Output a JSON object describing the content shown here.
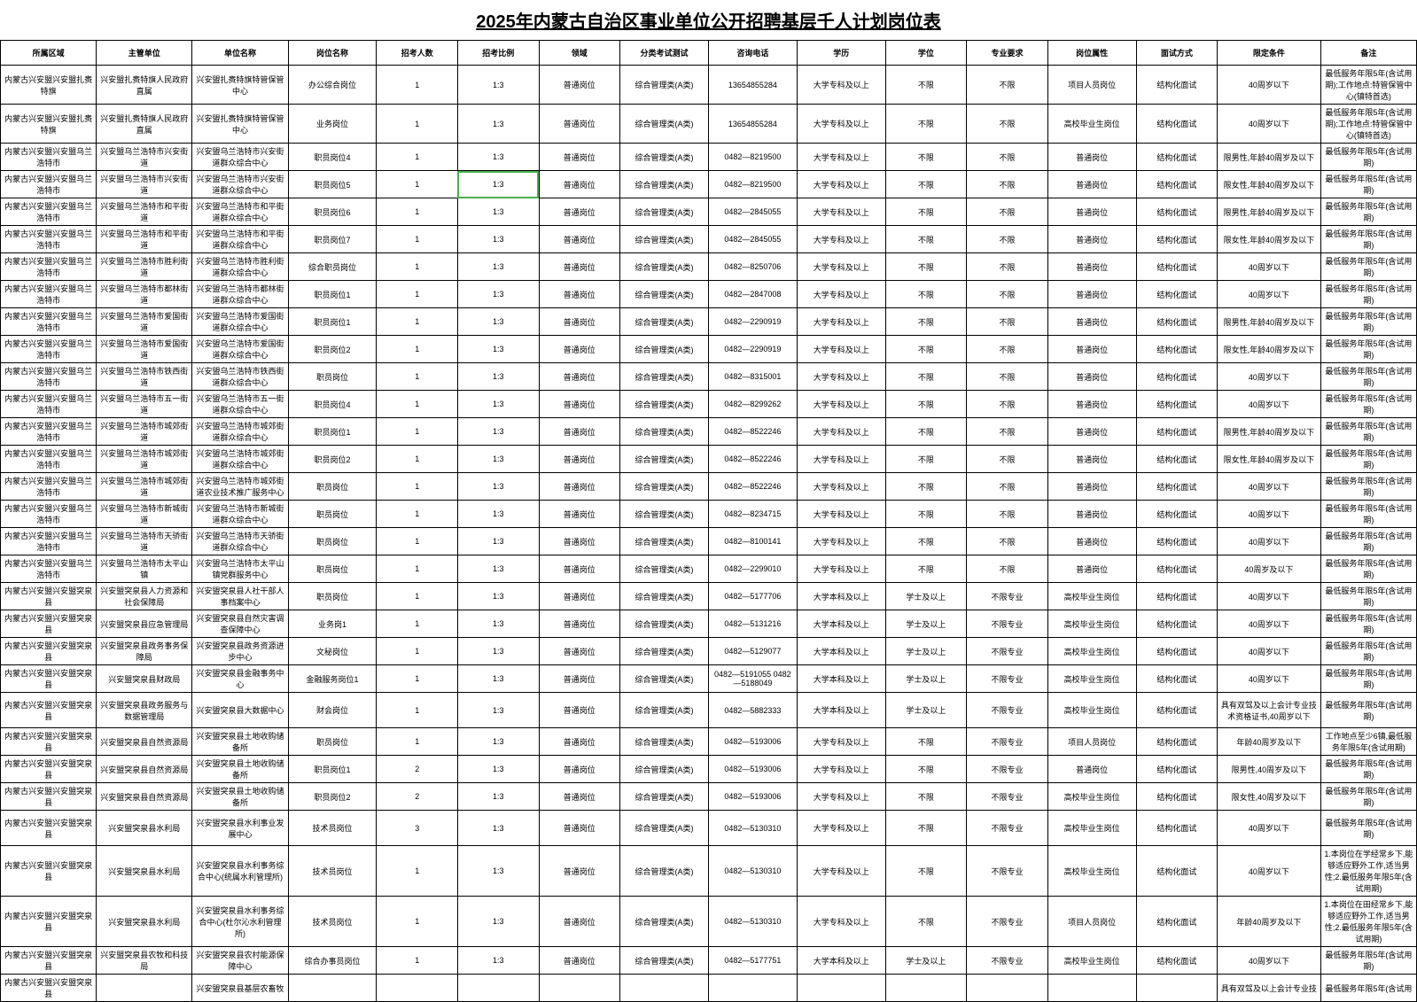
{
  "title": "2025年内蒙古自治区事业单位公开招聘基层千人计划岗位表",
  "headers": [
    "所属区域",
    "主管单位",
    "单位名称",
    "岗位名称",
    "招考人数",
    "招考比例",
    "领域",
    "分类考试测试",
    "咨询电话",
    "学历",
    "学位",
    "专业要求",
    "岗位属性",
    "面试方式",
    "限定条件",
    "备注"
  ],
  "rows": [
    {
      "cells": [
        "内蒙古兴安盟兴安盟扎赉特旗",
        "兴安盟扎赉特旗人民政府直属",
        "兴安盟扎赉特旗特管保管中心",
        "办公综合岗位",
        "1",
        "1:3",
        "普通岗位",
        "综合管理类(A类)",
        "13654855284",
        "大学专科及以上",
        "不限",
        "不限",
        "项目人员岗位",
        "结构化面试",
        "40周岁以下",
        "最低服务年限5年(含试用期);工作地点:特管保管中心(镇特首选)"
      ],
      "tall": true
    },
    {
      "cells": [
        "内蒙古兴安盟兴安盟扎赉特旗",
        "兴安盟扎赉特旗人民政府直属",
        "兴安盟扎赉特旗特管保管中心",
        "业务岗位",
        "1",
        "1:3",
        "普通岗位",
        "综合管理类(A类)",
        "13654855284",
        "大学专科及以上",
        "不限",
        "不限",
        "高校毕业生岗位",
        "结构化面试",
        "40周岁以下",
        "最低服务年限5年(含试用期);工作地点:特管保管中心(镇特首选)"
      ],
      "tall": true
    },
    {
      "cells": [
        "内蒙古兴安盟兴安盟乌兰浩特市",
        "兴安盟乌兰浩特市兴安街道",
        "兴安盟乌兰浩特市兴安街道群众综合中心",
        "职员岗位4",
        "1",
        "1:3",
        "普通岗位",
        "综合管理类(A类)",
        "0482—8219500",
        "大学专科及以上",
        "不限",
        "不限",
        "普通岗位",
        "结构化面试",
        "限男性,年龄40周岁及以下",
        "最低服务年限5年(含试用期)"
      ]
    },
    {
      "cells": [
        "内蒙古兴安盟兴安盟乌兰浩特市",
        "兴安盟乌兰浩特市兴安街道",
        "兴安盟乌兰浩特市兴安街道群众综合中心",
        "职员岗位5",
        "1",
        "1:3",
        "普通岗位",
        "综合管理类(A类)",
        "0482—8219500",
        "大学专科及以上",
        "不限",
        "不限",
        "普通岗位",
        "结构化面试",
        "限女性,年龄40周岁及以下",
        "最低服务年限5年(含试用期)"
      ],
      "selected": 5
    },
    {
      "cells": [
        "内蒙古兴安盟兴安盟乌兰浩特市",
        "兴安盟乌兰浩特市和平街道",
        "兴安盟乌兰浩特市和平街道群众综合中心",
        "职员岗位6",
        "1",
        "1:3",
        "普通岗位",
        "综合管理类(A类)",
        "0482—2845055",
        "大学专科及以上",
        "不限",
        "不限",
        "普通岗位",
        "结构化面试",
        "限男性,年龄40周岁及以下",
        "最低服务年限5年(含试用期)"
      ]
    },
    {
      "cells": [
        "内蒙古兴安盟兴安盟乌兰浩特市",
        "兴安盟乌兰浩特市和平街道",
        "兴安盟乌兰浩特市和平街道群众综合中心",
        "职员岗位7",
        "1",
        "1:3",
        "普通岗位",
        "综合管理类(A类)",
        "0482—2845055",
        "大学专科及以上",
        "不限",
        "不限",
        "普通岗位",
        "结构化面试",
        "限女性,年龄40周岁及以下",
        "最低服务年限5年(含试用期)"
      ]
    },
    {
      "cells": [
        "内蒙古兴安盟兴安盟乌兰浩特市",
        "兴安盟乌兰浩特市胜利街道",
        "兴安盟乌兰浩特市胜利街道群众综合中心",
        "综合职员岗位",
        "1",
        "1:3",
        "普通岗位",
        "综合管理类(A类)",
        "0482—8250706",
        "大学专科及以上",
        "不限",
        "不限",
        "普通岗位",
        "结构化面试",
        "40周岁以下",
        "最低服务年限5年(含试用期)"
      ]
    },
    {
      "cells": [
        "内蒙古兴安盟兴安盟乌兰浩特市",
        "兴安盟乌兰浩特市都林街道",
        "兴安盟乌兰浩特市都林街道群众综合中心",
        "职员岗位1",
        "1",
        "1:3",
        "普通岗位",
        "综合管理类(A类)",
        "0482—2847008",
        "大学专科及以上",
        "不限",
        "不限",
        "普通岗位",
        "结构化面试",
        "40周岁以下",
        "最低服务年限5年(含试用期)"
      ]
    },
    {
      "cells": [
        "内蒙古兴安盟兴安盟乌兰浩特市",
        "兴安盟乌兰浩特市爱国街道",
        "兴安盟乌兰浩特市爱国街道群众综合中心",
        "职员岗位1",
        "1",
        "1:3",
        "普通岗位",
        "综合管理类(A类)",
        "0482—2290919",
        "大学专科及以上",
        "不限",
        "不限",
        "普通岗位",
        "结构化面试",
        "限男性,年龄40周岁及以下",
        "最低服务年限5年(含试用期)"
      ]
    },
    {
      "cells": [
        "内蒙古兴安盟兴安盟乌兰浩特市",
        "兴安盟乌兰浩特市爱国街道",
        "兴安盟乌兰浩特市爱国街道群众综合中心",
        "职员岗位2",
        "1",
        "1:3",
        "普通岗位",
        "综合管理类(A类)",
        "0482—2290919",
        "大学专科及以上",
        "不限",
        "不限",
        "普通岗位",
        "结构化面试",
        "限女性,年龄40周岁及以下",
        "最低服务年限5年(含试用期)"
      ]
    },
    {
      "cells": [
        "内蒙古兴安盟兴安盟乌兰浩特市",
        "兴安盟乌兰浩特市铁西街道",
        "兴安盟乌兰浩特市铁西街道群众综合中心",
        "职员岗位",
        "1",
        "1:3",
        "普通岗位",
        "综合管理类(A类)",
        "0482—8315001",
        "大学专科及以上",
        "不限",
        "不限",
        "普通岗位",
        "结构化面试",
        "40周岁以下",
        "最低服务年限5年(含试用期)"
      ]
    },
    {
      "cells": [
        "内蒙古兴安盟兴安盟乌兰浩特市",
        "兴安盟乌兰浩特市五一街道",
        "兴安盟乌兰浩特市五一街道群众综合中心",
        "职员岗位4",
        "1",
        "1:3",
        "普通岗位",
        "综合管理类(A类)",
        "0482—8299262",
        "大学专科及以上",
        "不限",
        "不限",
        "普通岗位",
        "结构化面试",
        "40周岁以下",
        "最低服务年限5年(含试用期)"
      ]
    },
    {
      "cells": [
        "内蒙古兴安盟兴安盟乌兰浩特市",
        "兴安盟乌兰浩特市城郊街道",
        "兴安盟乌兰浩特市城郊街道群众综合中心",
        "职员岗位1",
        "1",
        "1:3",
        "普通岗位",
        "综合管理类(A类)",
        "0482—8522246",
        "大学专科及以上",
        "不限",
        "不限",
        "普通岗位",
        "结构化面试",
        "限男性,年龄40周岁及以下",
        "最低服务年限5年(含试用期)"
      ]
    },
    {
      "cells": [
        "内蒙古兴安盟兴安盟乌兰浩特市",
        "兴安盟乌兰浩特市城郊街道",
        "兴安盟乌兰浩特市城郊街道群众综合中心",
        "职员岗位2",
        "1",
        "1:3",
        "普通岗位",
        "综合管理类(A类)",
        "0482—8522246",
        "大学专科及以上",
        "不限",
        "不限",
        "普通岗位",
        "结构化面试",
        "限女性,年龄40周岁及以下",
        "最低服务年限5年(含试用期)"
      ]
    },
    {
      "cells": [
        "内蒙古兴安盟兴安盟乌兰浩特市",
        "兴安盟乌兰浩特市城郊街道",
        "兴安盟乌兰浩特市城郊街道农业技术推广服务中心",
        "职员岗位",
        "1",
        "1:3",
        "普通岗位",
        "综合管理类(A类)",
        "0482—8522246",
        "大学专科及以上",
        "不限",
        "不限",
        "普通岗位",
        "结构化面试",
        "40周岁以下",
        "最低服务年限5年(含试用期)"
      ]
    },
    {
      "cells": [
        "内蒙古兴安盟兴安盟乌兰浩特市",
        "兴安盟乌兰浩特市新城街道",
        "兴安盟乌兰浩特市新城街道群众综合中心",
        "职员岗位",
        "1",
        "1:3",
        "普通岗位",
        "综合管理类(A类)",
        "0482—8234715",
        "大学专科及以上",
        "不限",
        "不限",
        "普通岗位",
        "结构化面试",
        "40周岁以下",
        "最低服务年限5年(含试用期)"
      ]
    },
    {
      "cells": [
        "内蒙古兴安盟兴安盟乌兰浩特市",
        "兴安盟乌兰浩特市天骄街道",
        "兴安盟乌兰浩特市天骄街道群众综合中心",
        "职员岗位",
        "1",
        "1:3",
        "普通岗位",
        "综合管理类(A类)",
        "0482—8100141",
        "大学专科及以上",
        "不限",
        "不限",
        "普通岗位",
        "结构化面试",
        "40周岁以下",
        "最低服务年限5年(含试用期)"
      ]
    },
    {
      "cells": [
        "内蒙古兴安盟兴安盟乌兰浩特市",
        "兴安盟乌兰浩特市太平山镇",
        "兴安盟乌兰浩特市太平山镇党群服务中心",
        "职员岗位",
        "1",
        "1:3",
        "普通岗位",
        "综合管理类(A类)",
        "0482—2299010",
        "大学专科及以上",
        "不限",
        "不限",
        "普通岗位",
        "结构化面试",
        "40周岁及以下",
        "最低服务年限5年(含试用期)"
      ]
    },
    {
      "cells": [
        "内蒙古兴安盟兴安盟突泉县",
        "兴安盟突泉县人力资源和社会保障局",
        "兴安盟突泉县人社干部人事档案中心",
        "职员岗位",
        "1",
        "1:3",
        "普通岗位",
        "综合管理类(A类)",
        "0482—5177706",
        "大学本科及以上",
        "学士及以上",
        "不限专业",
        "高校毕业生岗位",
        "结构化面试",
        "40周岁以下",
        "最低服务年限5年(含试用期)"
      ]
    },
    {
      "cells": [
        "内蒙古兴安盟兴安盟突泉县",
        "兴安盟突泉县应急管理局",
        "兴安盟突泉县自然灾害调查保障中心",
        "业务岗1",
        "1",
        "1:3",
        "普通岗位",
        "综合管理类(A类)",
        "0482—5131216",
        "大学本科及以上",
        "学士及以上",
        "不限专业",
        "高校毕业生岗位",
        "结构化面试",
        "40周岁以下",
        "最低服务年限5年(含试用期)"
      ]
    },
    {
      "cells": [
        "内蒙古兴安盟兴安盟突泉县",
        "兴安盟突泉县政务事务保障局",
        "兴安盟突泉县政务资源进步中心",
        "文秘岗位",
        "1",
        "1:3",
        "普通岗位",
        "综合管理类(A类)",
        "0482—5129077",
        "大学本科及以上",
        "学士及以上",
        "不限专业",
        "高校毕业生岗位",
        "结构化面试",
        "40周岁以下",
        "最低服务年限5年(含试用期)"
      ]
    },
    {
      "cells": [
        "内蒙古兴安盟兴安盟突泉县",
        "兴安盟突泉县财政局",
        "兴安盟突泉县金融事务中心",
        "金融服务岗位1",
        "1",
        "1:3",
        "普通岗位",
        "综合管理类(A类)",
        "0482—5191055 0482—5188049",
        "大学本科及以上",
        "学士及以上",
        "不限专业",
        "高校毕业生岗位",
        "结构化面试",
        "40周岁以下",
        "最低服务年限5年(含试用期)"
      ]
    },
    {
      "cells": [
        "内蒙古兴安盟兴安盟突泉县",
        "兴安盟突泉县政务服务与数据管理局",
        "兴安盟突泉县大数据中心",
        "财会岗位",
        "1",
        "1:3",
        "普通岗位",
        "综合管理类(A类)",
        "0482—5882333",
        "大学本科及以上",
        "学士及以上",
        "不限专业",
        "高校毕业生岗位",
        "结构化面试",
        "具有双驾及以上会计专业技术资格证书,40周岁以下",
        "最低服务年限5年(含试用期)"
      ],
      "tall": true
    },
    {
      "cells": [
        "内蒙古兴安盟兴安盟突泉县",
        "兴安盟突泉县自然资源局",
        "兴安盟突泉县土地收购储备所",
        "职员岗位",
        "1",
        "1:3",
        "普通岗位",
        "综合管理类(A类)",
        "0482—5193006",
        "大学专科及以上",
        "不限",
        "不限专业",
        "项目人员岗位",
        "结构化面试",
        "年龄40周岁及以下",
        "工作地点至少6镇,最低服务年限5年(含试用期)"
      ]
    },
    {
      "cells": [
        "内蒙古兴安盟兴安盟突泉县",
        "兴安盟突泉县自然资源局",
        "兴安盟突泉县土地收购储备所",
        "职员岗位1",
        "2",
        "1:3",
        "普通岗位",
        "综合管理类(A类)",
        "0482—5193006",
        "大学专科及以上",
        "不限",
        "不限专业",
        "普通岗位",
        "结构化面试",
        "限男性,40周岁及以下",
        "最低服务年限5年(含试用期)"
      ]
    },
    {
      "cells": [
        "内蒙古兴安盟兴安盟突泉县",
        "兴安盟突泉县自然资源局",
        "兴安盟突泉县土地收购储备所",
        "职员岗位2",
        "2",
        "1:3",
        "普通岗位",
        "综合管理类(A类)",
        "0482—5193006",
        "大学专科及以上",
        "不限",
        "不限专业",
        "高校毕业生岗位",
        "结构化面试",
        "限女性,40周岁及以下",
        "最低服务年限5年(含试用期)"
      ]
    },
    {
      "cells": [
        "内蒙古兴安盟兴安盟突泉县",
        "兴安盟突泉县水利局",
        "兴安盟突泉县水利事业发展中心",
        "技术员岗位",
        "3",
        "1:3",
        "普通岗位",
        "综合管理类(A类)",
        "0482—5130310",
        "大学专科及以上",
        "不限",
        "不限专业",
        "高校毕业生岗位",
        "结构化面试",
        "40周岁以下",
        "最低服务年限5年(含试用期)"
      ],
      "tall": true
    },
    {
      "cells": [
        "内蒙古兴安盟兴安盟突泉县",
        "兴安盟突泉县水利局",
        "兴安盟突泉县水利事务综合中心(统属水利管理所)",
        "技术员岗位",
        "1",
        "1:3",
        "普通岗位",
        "综合管理类(A类)",
        "0482—5130310",
        "大学专科及以上",
        "不限",
        "不限专业",
        "高校毕业生岗位",
        "结构化面试",
        "40周岁以下",
        "1.本岗位在学经常乡下,能够适应野外工作,适当男性;2.最低服务年限5年(含试用期)"
      ],
      "tall": true
    },
    {
      "cells": [
        "内蒙古兴安盟兴安盟突泉县",
        "兴安盟突泉县水利局",
        "兴安盟突泉县水利事务综合中心(杜尔沁水利管理所)",
        "技术员岗位",
        "1",
        "1:3",
        "普通岗位",
        "综合管理类(A类)",
        "0482—5130310",
        "大学专科及以上",
        "不限",
        "不限专业",
        "项目人员岗位",
        "结构化面试",
        "年龄40周岁及以下",
        "1.本岗位在田经常乡下,能够适应野外工作,适当男性;2.最低服务年限5年(含试用期)"
      ],
      "tall": true
    },
    {
      "cells": [
        "内蒙古兴安盟兴安盟突泉县",
        "兴安盟突泉县农牧和科技局",
        "兴安盟突泉县农村能源保障中心",
        "综合办事员岗位",
        "1",
        "1:3",
        "普通岗位",
        "综合管理类(A类)",
        "0482—5177751",
        "大学本科及以上",
        "学士及以上",
        "不限专业",
        "高校毕业生岗位",
        "结构化面试",
        "40周岁以下",
        "最低服务年限5年(含试用期)"
      ]
    },
    {
      "cells": [
        "内蒙古兴安盟兴安盟突泉县",
        "",
        "兴安盟突泉县基层农畜牧",
        "",
        "",
        "",
        "",
        "",
        "",
        "",
        "",
        "",
        "",
        "",
        "具有双驾及以上会计专业技",
        "最低服务年限5年(含试用"
      ]
    }
  ],
  "styles": {
    "title_fontsize": 20,
    "cell_fontsize": 9,
    "border_color": "#000000",
    "background_color": "#ffffff"
  }
}
